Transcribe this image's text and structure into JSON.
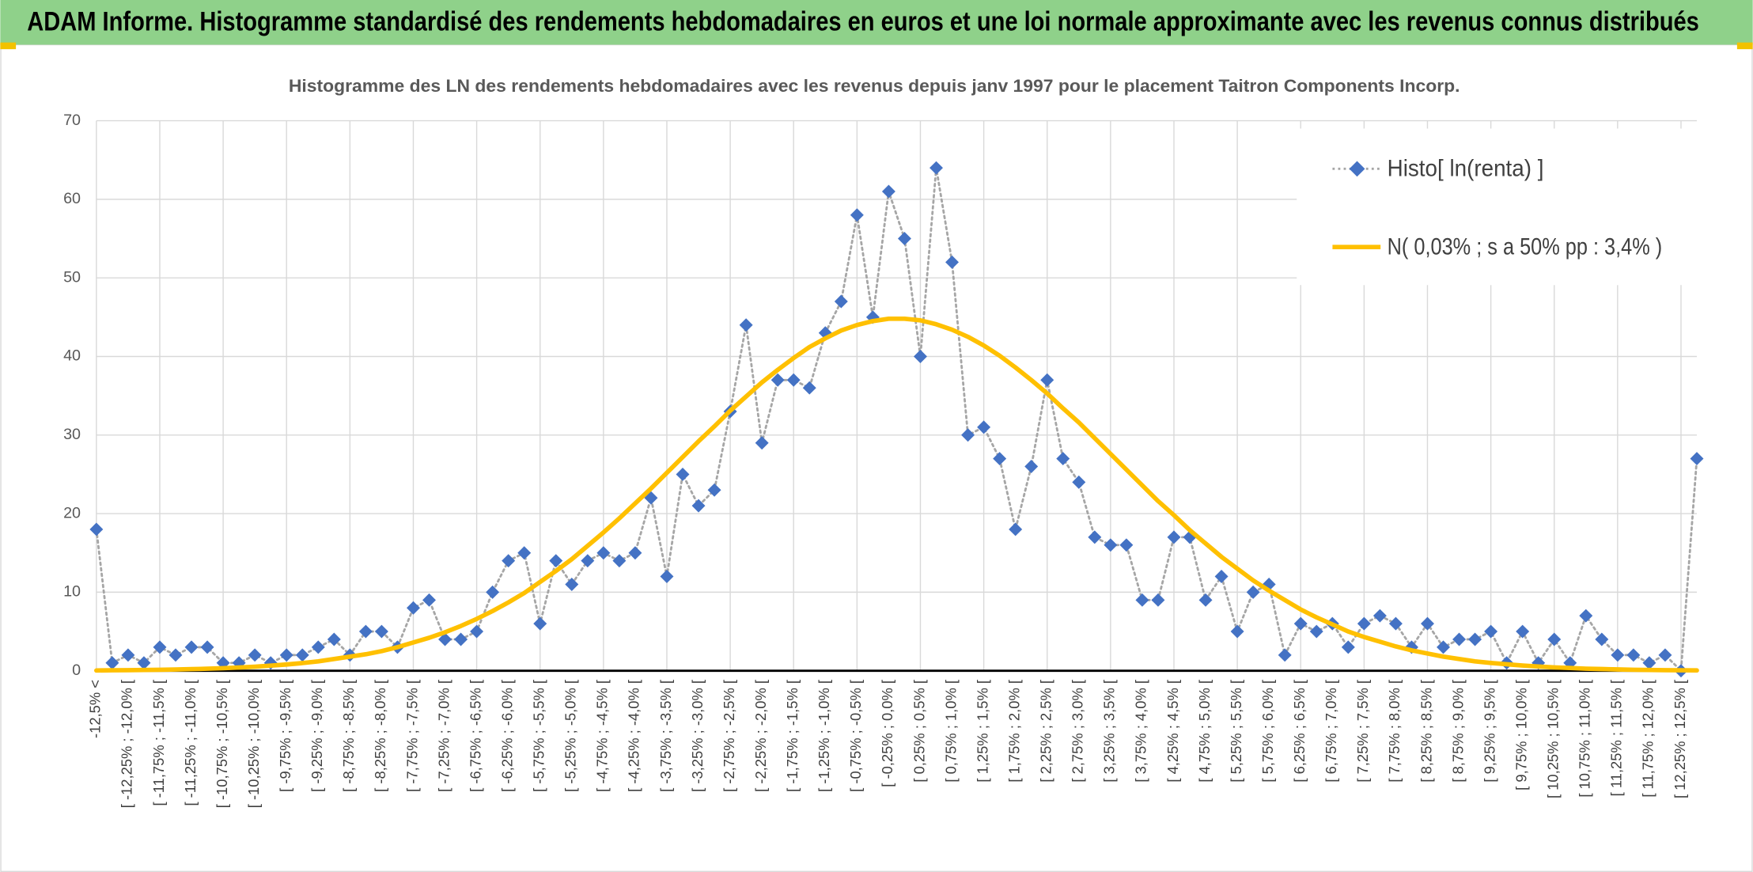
{
  "chart_data": {
    "type": "line",
    "header": "ADAM Informe. Histogramme standardisé des rendements hebdomadaires en euros et une loi normale approximante avec les revenus connus distribués",
    "title": "Histogramme des LN des rendements hebdomadaires avec les revenus depuis janv 1997 pour le placement Taitron Components Incorp.",
    "categories": [
      "-12,5% <",
      null,
      "[ -12,25% ; -12,0% [",
      null,
      "[ -11,75% ; -11,5% [",
      null,
      "[ -11,25% ; -11,0% [",
      null,
      "[ -10,75% ; -10,5% [",
      null,
      "[ -10,25% ; -10,0% [",
      null,
      "[ -9,75% ; -9,5% [",
      null,
      "[ -9,25% ; -9,0% [",
      null,
      "[ -8,75% ; -8,5% [",
      null,
      "[ -8,25% ; -8,0% [",
      null,
      "[ -7,75% ; -7,5% [",
      null,
      "[ -7,25% ; -7,0% [",
      null,
      "[ -6,75% ; -6,5% [",
      null,
      "[ -6,25% ; -6,0% [",
      null,
      "[ -5,75% ; -5,5% [",
      null,
      "[ -5,25% ; -5,0% [",
      null,
      "[ -4,75% ; -4,5% [",
      null,
      "[ -4,25% ; -4,0% [",
      null,
      "[ -3,75% ; -3,5% [",
      null,
      "[ -3,25% ; -3,0% [",
      null,
      "[ -2,75% ; -2,5% [",
      null,
      "[ -2,25% ; -2,0% [",
      null,
      "[ -1,75% ; -1,5% [",
      null,
      "[ -1,25% ; -1,0% [",
      null,
      "[ -0,75% ; -0,5% [",
      null,
      "[ -0,25% ; 0,0% [",
      null,
      "[ 0,25% ; 0,5% [",
      null,
      "[ 0,75% ; 1,0% [",
      null,
      "[ 1,25% ; 1,5% [",
      null,
      "[ 1,75% ; 2,0% [",
      null,
      "[ 2,25% ; 2,5% [",
      null,
      "[ 2,75% ; 3,0% [",
      null,
      "[ 3,25% ; 3,5% [",
      null,
      "[ 3,75% ; 4,0% [",
      null,
      "[ 4,25% ; 4,5% [",
      null,
      "[ 4,75% ; 5,0% [",
      null,
      "[ 5,25% ; 5,5% [",
      null,
      "[ 5,75% ; 6,0% [",
      null,
      "[ 6,25% ; 6,5% [",
      null,
      "[ 6,75% ; 7,0% [",
      null,
      "[ 7,25% ; 7,5% [",
      null,
      "[ 7,75% ; 8,0% [",
      null,
      "[ 8,25% ; 8,5% [",
      null,
      "[ 8,75% ; 9,0% [",
      null,
      "[ 9,25% ; 9,5% [",
      null,
      "[ 9,75% ; 10,0% [",
      null,
      "[ 10,25% ; 10,5% [",
      null,
      "[ 10,75% ; 11,0% [",
      null,
      "[ 11,25% ; 11,5% [",
      null,
      "[ 11,75% ; 12,0% [",
      null,
      "[ 12,25% ; 12,5% [",
      null
    ],
    "series": [
      {
        "name": "Histo[ ln(renta) ]",
        "color": "#4472c4",
        "line_color": "#a6a6a6",
        "marker": "diamond",
        "dashed": true,
        "values": [
          18,
          1,
          2,
          1,
          3,
          2,
          3,
          3,
          1,
          1,
          2,
          1,
          2,
          2,
          3,
          4,
          2,
          5,
          5,
          3,
          8,
          9,
          4,
          4,
          5,
          10,
          14,
          15,
          6,
          14,
          11,
          14,
          15,
          14,
          15,
          22,
          12,
          25,
          21,
          23,
          33,
          44,
          29,
          37,
          37,
          36,
          43,
          47,
          58,
          45,
          61,
          55,
          40,
          64,
          52,
          30,
          31,
          27,
          18,
          26,
          37,
          27,
          24,
          17,
          16,
          16,
          9,
          9,
          17,
          17,
          9,
          12,
          5,
          10,
          11,
          2,
          6,
          5,
          6,
          3,
          6,
          7,
          6,
          3,
          6,
          3,
          4,
          4,
          5,
          1,
          5,
          1,
          4,
          1,
          7,
          4,
          2,
          2,
          1,
          2,
          0,
          27
        ]
      },
      {
        "name": "N( 0,03% ; s a 50% pp : 3,4% )",
        "color": "#ffc000",
        "values": [
          0.04,
          0.06,
          0.08,
          0.1,
          0.13,
          0.16,
          0.21,
          0.26,
          0.33,
          0.42,
          0.52,
          0.65,
          0.8,
          0.98,
          1.2,
          1.5,
          1.8,
          2.1,
          2.5,
          3.0,
          3.6,
          4.2,
          4.9,
          5.7,
          6.6,
          7.6,
          8.7,
          9.9,
          11.3,
          12.7,
          14.2,
          15.9,
          17.6,
          19.4,
          21.3,
          23.2,
          25.2,
          27.2,
          29.2,
          31.1,
          33.1,
          34.9,
          36.7,
          38.3,
          39.8,
          41.2,
          42.3,
          43.3,
          44.0,
          44.5,
          44.8,
          44.8,
          44.6,
          44.1,
          43.4,
          42.5,
          41.4,
          40.1,
          38.6,
          37.0,
          35.3,
          33.4,
          31.6,
          29.6,
          27.6,
          25.6,
          23.6,
          21.6,
          19.8,
          17.9,
          16.2,
          14.5,
          13.0,
          11.5,
          10.2,
          9.0,
          7.8,
          6.8,
          5.9,
          5.0,
          4.3,
          3.7,
          3.1,
          2.6,
          2.2,
          1.8,
          1.5,
          1.2,
          1.0,
          0.83,
          0.67,
          0.54,
          0.43,
          0.35,
          0.27,
          0.22,
          0.17,
          0.13,
          0.1,
          0.08,
          0.06,
          0.05
        ]
      }
    ],
    "ylim": [
      0,
      70
    ],
    "yticks": [
      0,
      10,
      20,
      30,
      40,
      50,
      60,
      70
    ],
    "grid": true,
    "legend": "upper right"
  }
}
